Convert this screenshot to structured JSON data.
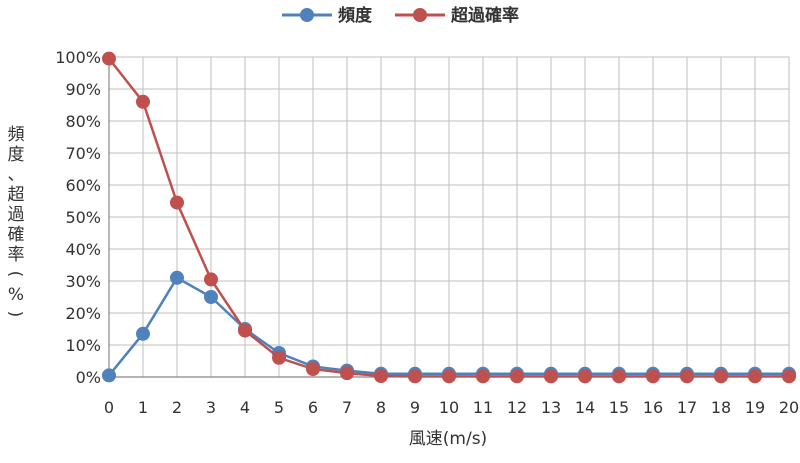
{
  "chart_data": {
    "type": "line",
    "x": [
      0,
      1,
      2,
      3,
      4,
      5,
      6,
      7,
      8,
      9,
      10,
      11,
      12,
      13,
      14,
      15,
      16,
      17,
      18,
      19,
      20
    ],
    "series": [
      {
        "name": "頻度",
        "color": "#4f81bd",
        "values": [
          0.5,
          13.5,
          31,
          25,
          15,
          7.5,
          3.3,
          2,
          1,
          1,
          1,
          1,
          1,
          1,
          1,
          1,
          1,
          1,
          1,
          1,
          1
        ]
      },
      {
        "name": "超過確率",
        "color": "#c0504d",
        "values": [
          99.5,
          86,
          54.5,
          30.5,
          14.5,
          6,
          2.5,
          1.2,
          0.3,
          0.2,
          0.2,
          0.2,
          0.2,
          0.2,
          0.2,
          0.2,
          0.2,
          0.2,
          0.2,
          0.2,
          0.2
        ]
      }
    ],
    "x_tick_labels": [
      "0",
      "1",
      "2",
      "3",
      "4",
      "5",
      "6",
      "7",
      "8",
      "9",
      "10",
      "11",
      "12",
      "13",
      "14",
      "15",
      "16",
      "17",
      "18",
      "19",
      "20"
    ],
    "y_tick_labels": [
      "0%",
      "10%",
      "20%",
      "30%",
      "40%",
      "50%",
      "60%",
      "70%",
      "80%",
      "90%",
      "100%"
    ],
    "xlim": [
      0,
      20
    ],
    "ylim": [
      0,
      100
    ],
    "xlabel": "風速(m/s)",
    "ylabel_chars": [
      "頻",
      "度",
      "、",
      "超",
      "過",
      "確",
      "率",
      "(",
      "%",
      ")"
    ],
    "grid": true,
    "legend_position": "top-center",
    "colors": {
      "grid": "#bfbfbf",
      "axis": "#888888",
      "text": "#333333"
    }
  }
}
